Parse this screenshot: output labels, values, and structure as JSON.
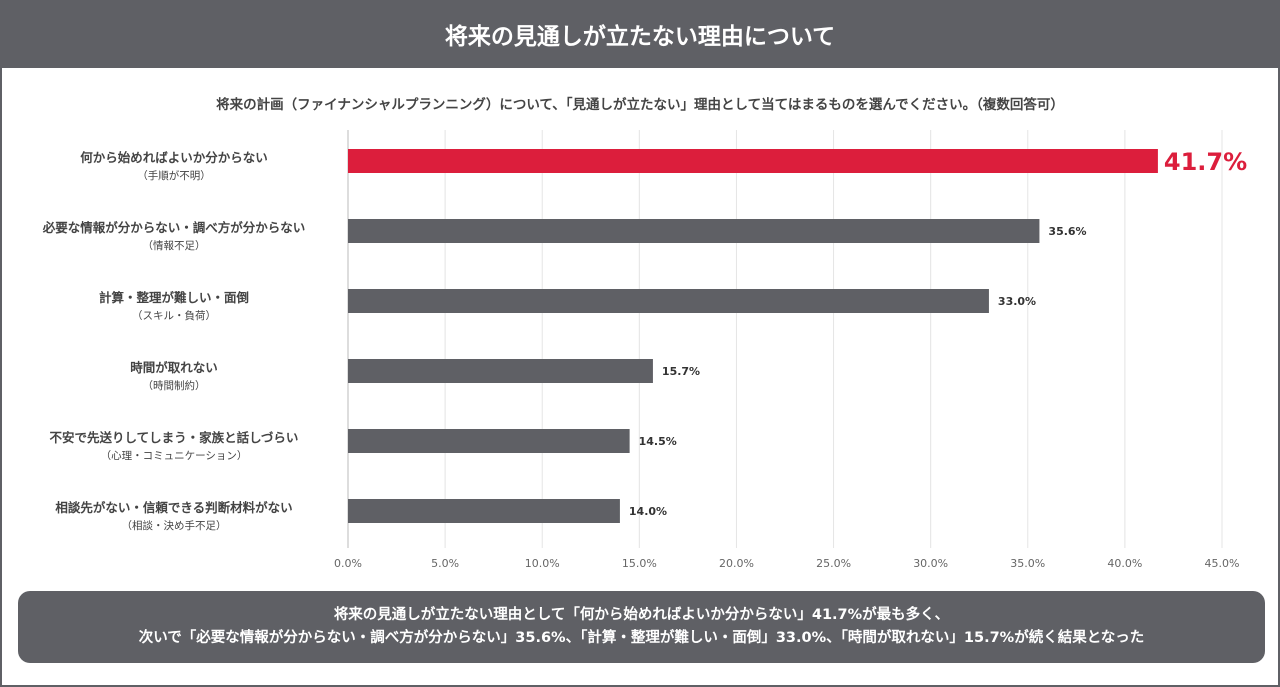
{
  "header": {
    "title": "将来の見通しが立たない理由について"
  },
  "chart_data": {
    "type": "bar",
    "orientation": "horizontal",
    "title": "将来の計画（ファイナンシャルプランニング）について、「見通しが立たない」理由として当てはまるものを選んでください。（複数回答可）",
    "categories": [
      {
        "main": "何から始めればよいか分からない",
        "sub": "（手順が不明）"
      },
      {
        "main": "必要な情報が分からない・調べ方が分からない",
        "sub": "（情報不足）"
      },
      {
        "main": "計算・整理が難しい・面倒",
        "sub": "（スキル・負荷）"
      },
      {
        "main": "時間が取れない",
        "sub": "（時間制約）"
      },
      {
        "main": "不安で先送りしてしまう・家族と話しづらい",
        "sub": "（心理・コミュニケーション）"
      },
      {
        "main": "相談先がない・信頼できる判断材料がない",
        "sub": "（相談・決め手不足）"
      }
    ],
    "values": [
      41.7,
      35.6,
      33.0,
      15.7,
      14.5,
      14.0
    ],
    "value_labels": [
      "41.7%",
      "35.6%",
      "33.0%",
      "15.7%",
      "14.5%",
      "14.0%"
    ],
    "xlim": [
      0,
      45
    ],
    "ticks": [
      "0.0%",
      "5.0%",
      "10.0%",
      "15.0%",
      "20.0%",
      "25.0%",
      "30.0%",
      "35.0%",
      "40.0%",
      "45.0%"
    ],
    "grid": true,
    "colors": {
      "highlight": "#dc1e3c",
      "bar": "#5f6065"
    }
  },
  "summary": {
    "line1": "将来の見通しが立たない理由として「何から始めればよいか分からない」41.7%が最も多く、",
    "line2": "次いで「必要な情報が分からない・調べ方が分からない」35.6%、「計算・整理が難しい・面倒」33.0%、「時間が取れない」15.7%が続く結果となった"
  }
}
